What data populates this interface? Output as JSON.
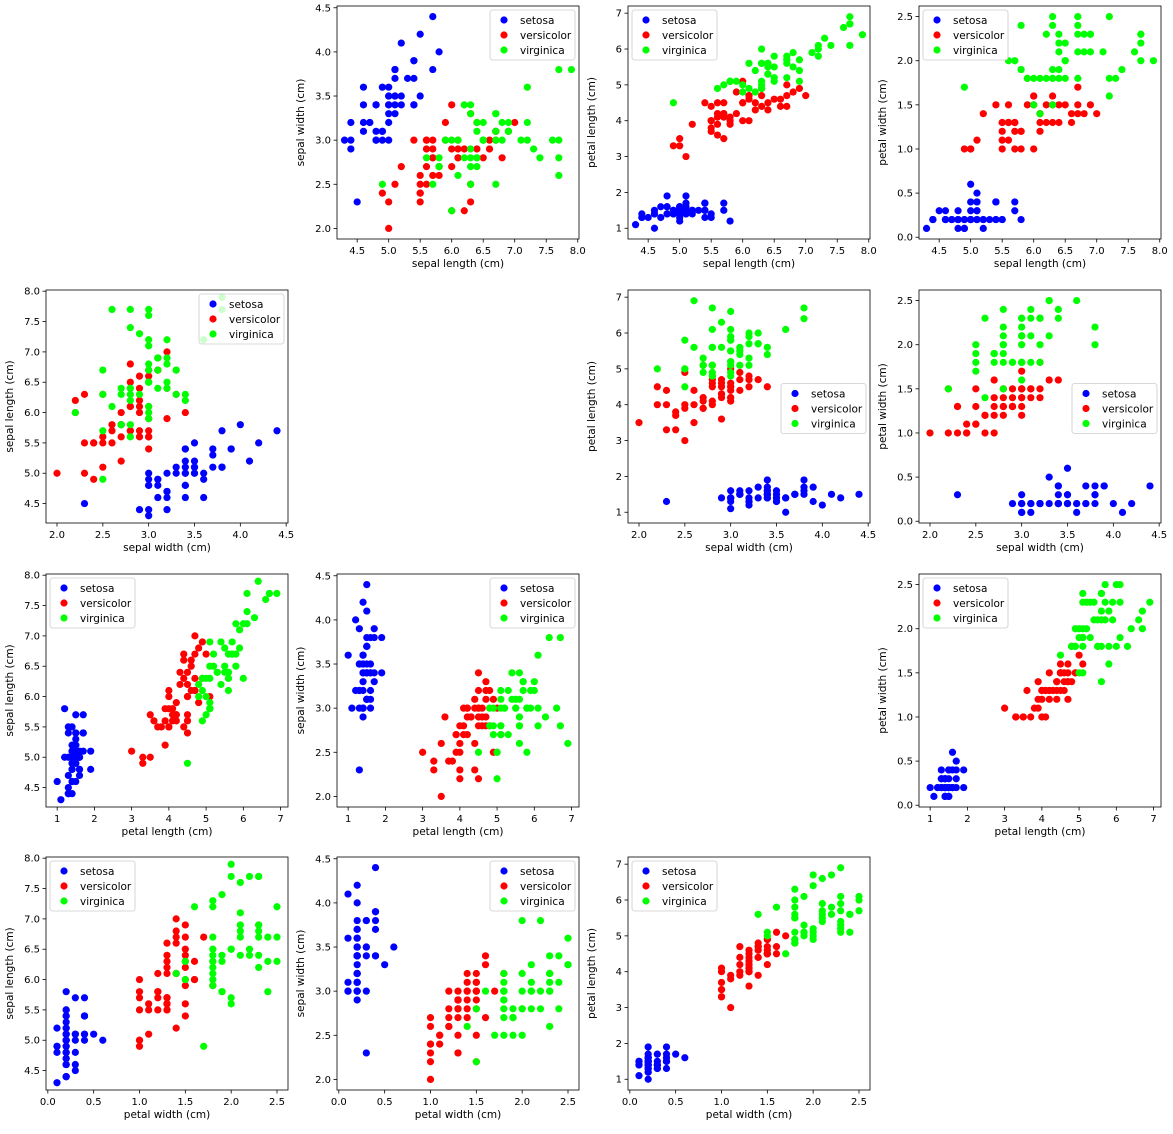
{
  "colors": {
    "setosa": "#0000ff",
    "versicolor": "#ff0000",
    "virginica": "#00ff00"
  },
  "legend": [
    "setosa",
    "versicolor",
    "virginica"
  ],
  "features": [
    "sepal length (cm)",
    "sepal width (cm)",
    "petal length (cm)",
    "petal width (cm)"
  ],
  "ticks": {
    "sepal length (cm)": [
      "4.5",
      "5.0",
      "5.5",
      "6.0",
      "6.5",
      "7.0",
      "7.5",
      "8.0"
    ],
    "sepal width (cm)": [
      "2.0",
      "2.5",
      "3.0",
      "3.5",
      "4.0",
      "4.5"
    ],
    "petal length (cm)": [
      "1",
      "2",
      "3",
      "4",
      "5",
      "6",
      "7"
    ],
    "petal width (cm)": [
      "0.0",
      "0.5",
      "1.0",
      "1.5",
      "2.0",
      "2.5"
    ]
  },
  "chart_data": {
    "type": "scatter",
    "grid": false,
    "layout": "4x4 pairwise scatter matrix, diagonal panels empty",
    "columns": [
      "sepal length (cm)",
      "sepal width (cm)",
      "petal length (cm)",
      "petal width (cm)"
    ],
    "series": [
      {
        "name": "setosa",
        "color": "#0000ff",
        "rows": [
          [
            5.1,
            3.5,
            1.4,
            0.2
          ],
          [
            4.9,
            3.0,
            1.4,
            0.2
          ],
          [
            4.7,
            3.2,
            1.3,
            0.2
          ],
          [
            4.6,
            3.1,
            1.5,
            0.2
          ],
          [
            5.0,
            3.6,
            1.4,
            0.2
          ],
          [
            5.4,
            3.9,
            1.7,
            0.4
          ],
          [
            4.6,
            3.4,
            1.4,
            0.3
          ],
          [
            5.0,
            3.4,
            1.5,
            0.2
          ],
          [
            4.4,
            2.9,
            1.4,
            0.2
          ],
          [
            4.9,
            3.1,
            1.5,
            0.1
          ],
          [
            5.4,
            3.7,
            1.5,
            0.2
          ],
          [
            4.8,
            3.4,
            1.6,
            0.2
          ],
          [
            4.8,
            3.0,
            1.4,
            0.1
          ],
          [
            4.3,
            3.0,
            1.1,
            0.1
          ],
          [
            5.8,
            4.0,
            1.2,
            0.2
          ],
          [
            5.7,
            4.4,
            1.5,
            0.4
          ],
          [
            5.4,
            3.9,
            1.3,
            0.4
          ],
          [
            5.1,
            3.5,
            1.4,
            0.3
          ],
          [
            5.7,
            3.8,
            1.7,
            0.3
          ],
          [
            5.1,
            3.8,
            1.5,
            0.3
          ],
          [
            5.4,
            3.4,
            1.7,
            0.2
          ],
          [
            5.1,
            3.7,
            1.5,
            0.4
          ],
          [
            4.6,
            3.6,
            1.0,
            0.2
          ],
          [
            5.1,
            3.3,
            1.7,
            0.5
          ],
          [
            4.8,
            3.4,
            1.9,
            0.2
          ],
          [
            5.0,
            3.0,
            1.6,
            0.2
          ],
          [
            5.0,
            3.4,
            1.6,
            0.4
          ],
          [
            5.2,
            3.5,
            1.5,
            0.2
          ],
          [
            5.2,
            3.4,
            1.4,
            0.2
          ],
          [
            4.7,
            3.2,
            1.6,
            0.2
          ],
          [
            4.8,
            3.1,
            1.6,
            0.2
          ],
          [
            5.4,
            3.4,
            1.5,
            0.4
          ],
          [
            5.2,
            4.1,
            1.5,
            0.1
          ],
          [
            5.5,
            4.2,
            1.4,
            0.2
          ],
          [
            4.9,
            3.1,
            1.5,
            0.2
          ],
          [
            5.0,
            3.2,
            1.2,
            0.2
          ],
          [
            5.5,
            3.5,
            1.3,
            0.2
          ],
          [
            4.9,
            3.6,
            1.4,
            0.1
          ],
          [
            4.4,
            3.0,
            1.3,
            0.2
          ],
          [
            5.1,
            3.4,
            1.5,
            0.2
          ],
          [
            5.0,
            3.5,
            1.3,
            0.3
          ],
          [
            4.5,
            2.3,
            1.3,
            0.3
          ],
          [
            4.4,
            3.2,
            1.3,
            0.2
          ],
          [
            5.0,
            3.5,
            1.6,
            0.6
          ],
          [
            5.1,
            3.8,
            1.9,
            0.4
          ],
          [
            4.8,
            3.0,
            1.4,
            0.3
          ],
          [
            5.1,
            3.8,
            1.6,
            0.2
          ],
          [
            4.6,
            3.2,
            1.4,
            0.2
          ],
          [
            5.3,
            3.7,
            1.5,
            0.2
          ],
          [
            5.0,
            3.3,
            1.4,
            0.2
          ]
        ]
      },
      {
        "name": "versicolor",
        "color": "#ff0000",
        "rows": [
          [
            7.0,
            3.2,
            4.7,
            1.4
          ],
          [
            6.4,
            3.2,
            4.5,
            1.5
          ],
          [
            6.9,
            3.1,
            4.9,
            1.5
          ],
          [
            5.5,
            2.3,
            4.0,
            1.3
          ],
          [
            6.5,
            2.8,
            4.6,
            1.5
          ],
          [
            5.7,
            2.8,
            4.5,
            1.3
          ],
          [
            6.3,
            3.3,
            4.7,
            1.6
          ],
          [
            4.9,
            2.4,
            3.3,
            1.0
          ],
          [
            6.6,
            2.9,
            4.6,
            1.3
          ],
          [
            5.2,
            2.7,
            3.9,
            1.4
          ],
          [
            5.0,
            2.0,
            3.5,
            1.0
          ],
          [
            5.9,
            3.0,
            4.2,
            1.5
          ],
          [
            6.0,
            2.2,
            4.0,
            1.0
          ],
          [
            6.1,
            2.9,
            4.7,
            1.4
          ],
          [
            5.6,
            2.9,
            3.6,
            1.3
          ],
          [
            6.7,
            3.1,
            4.4,
            1.4
          ],
          [
            5.6,
            3.0,
            4.5,
            1.5
          ],
          [
            5.8,
            2.7,
            4.1,
            1.0
          ],
          [
            6.2,
            2.2,
            4.5,
            1.5
          ],
          [
            5.6,
            2.5,
            3.9,
            1.1
          ],
          [
            5.9,
            3.2,
            4.8,
            1.8
          ],
          [
            6.1,
            2.8,
            4.0,
            1.3
          ],
          [
            6.3,
            2.5,
            4.9,
            1.5
          ],
          [
            6.1,
            2.8,
            4.7,
            1.2
          ],
          [
            6.4,
            2.9,
            4.3,
            1.3
          ],
          [
            6.6,
            3.0,
            4.4,
            1.4
          ],
          [
            6.8,
            2.8,
            4.8,
            1.4
          ],
          [
            6.7,
            3.0,
            5.0,
            1.7
          ],
          [
            6.0,
            2.9,
            4.5,
            1.5
          ],
          [
            5.7,
            2.6,
            3.5,
            1.0
          ],
          [
            5.5,
            2.4,
            3.8,
            1.1
          ],
          [
            5.5,
            2.4,
            3.7,
            1.0
          ],
          [
            5.8,
            2.7,
            3.9,
            1.2
          ],
          [
            6.0,
            2.7,
            5.1,
            1.6
          ],
          [
            5.4,
            3.0,
            4.5,
            1.5
          ],
          [
            6.0,
            3.4,
            4.5,
            1.6
          ],
          [
            6.7,
            3.1,
            4.7,
            1.5
          ],
          [
            6.3,
            2.3,
            4.4,
            1.3
          ],
          [
            5.6,
            3.0,
            4.1,
            1.3
          ],
          [
            5.5,
            2.5,
            4.0,
            1.3
          ],
          [
            5.5,
            2.6,
            4.4,
            1.2
          ],
          [
            6.1,
            3.0,
            4.6,
            1.4
          ],
          [
            5.8,
            2.6,
            4.0,
            1.2
          ],
          [
            5.0,
            2.3,
            3.3,
            1.0
          ],
          [
            5.6,
            2.7,
            4.2,
            1.3
          ],
          [
            5.7,
            3.0,
            4.2,
            1.2
          ],
          [
            5.7,
            2.9,
            4.2,
            1.3
          ],
          [
            6.2,
            2.9,
            4.3,
            1.3
          ],
          [
            5.1,
            2.5,
            3.0,
            1.1
          ],
          [
            5.7,
            2.8,
            4.1,
            1.3
          ]
        ]
      },
      {
        "name": "virginica",
        "color": "#00ff00",
        "rows": [
          [
            6.3,
            3.3,
            6.0,
            2.5
          ],
          [
            5.8,
            2.7,
            5.1,
            1.9
          ],
          [
            7.1,
            3.0,
            5.9,
            2.1
          ],
          [
            6.3,
            2.9,
            5.6,
            1.8
          ],
          [
            6.5,
            3.0,
            5.8,
            2.2
          ],
          [
            7.6,
            3.0,
            6.6,
            2.1
          ],
          [
            4.9,
            2.5,
            4.5,
            1.7
          ],
          [
            7.3,
            2.9,
            6.3,
            1.8
          ],
          [
            6.7,
            2.5,
            5.8,
            1.8
          ],
          [
            7.2,
            3.6,
            6.1,
            2.5
          ],
          [
            6.5,
            3.2,
            5.1,
            2.0
          ],
          [
            6.4,
            2.7,
            5.3,
            1.9
          ],
          [
            6.8,
            3.0,
            5.5,
            2.1
          ],
          [
            5.7,
            2.5,
            5.0,
            2.0
          ],
          [
            5.8,
            2.8,
            5.1,
            2.4
          ],
          [
            6.4,
            3.2,
            5.3,
            2.3
          ],
          [
            6.5,
            3.0,
            5.5,
            1.8
          ],
          [
            7.7,
            3.8,
            6.7,
            2.2
          ],
          [
            7.7,
            2.6,
            6.9,
            2.3
          ],
          [
            6.0,
            2.2,
            5.0,
            1.5
          ],
          [
            6.9,
            3.2,
            5.7,
            2.3
          ],
          [
            5.6,
            2.8,
            4.9,
            2.0
          ],
          [
            7.7,
            2.8,
            6.7,
            2.0
          ],
          [
            6.3,
            2.7,
            4.9,
            1.8
          ],
          [
            6.7,
            3.3,
            5.7,
            2.1
          ],
          [
            7.2,
            3.2,
            6.0,
            1.8
          ],
          [
            6.2,
            2.8,
            4.8,
            1.8
          ],
          [
            6.1,
            3.0,
            4.9,
            1.8
          ],
          [
            6.4,
            2.8,
            5.6,
            2.1
          ],
          [
            7.2,
            3.0,
            5.8,
            1.6
          ],
          [
            7.4,
            2.8,
            6.1,
            1.9
          ],
          [
            7.9,
            3.8,
            6.4,
            2.0
          ],
          [
            6.4,
            2.8,
            5.6,
            2.2
          ],
          [
            6.3,
            2.8,
            5.1,
            1.5
          ],
          [
            6.1,
            2.6,
            5.6,
            1.4
          ],
          [
            7.7,
            3.0,
            6.1,
            2.3
          ],
          [
            6.3,
            3.4,
            5.6,
            2.4
          ],
          [
            6.4,
            3.1,
            5.5,
            1.8
          ],
          [
            6.0,
            3.0,
            4.8,
            1.8
          ],
          [
            6.9,
            3.1,
            5.4,
            2.1
          ],
          [
            6.7,
            3.1,
            5.6,
            2.4
          ],
          [
            6.9,
            3.1,
            5.1,
            2.3
          ],
          [
            5.8,
            2.7,
            5.1,
            1.9
          ],
          [
            6.8,
            3.2,
            5.9,
            2.3
          ],
          [
            6.7,
            3.3,
            5.7,
            2.5
          ],
          [
            6.7,
            3.0,
            5.2,
            2.3
          ],
          [
            6.3,
            2.5,
            5.0,
            1.9
          ],
          [
            6.5,
            3.0,
            5.2,
            2.0
          ],
          [
            6.2,
            3.4,
            5.4,
            2.3
          ],
          [
            5.9,
            3.0,
            5.1,
            1.8
          ]
        ]
      }
    ],
    "panels": [
      {
        "row": 0,
        "col": 1,
        "x": "sepal length (cm)",
        "y": "sepal width (cm)",
        "xlim": [
          4.18,
          8.02
        ],
        "ylim": [
          1.88,
          4.52
        ],
        "legend": "top-right"
      },
      {
        "row": 0,
        "col": 2,
        "x": "sepal length (cm)",
        "y": "petal length (cm)",
        "xlim": [
          4.18,
          8.02
        ],
        "ylim": [
          0.7,
          7.2
        ],
        "legend": "top-left"
      },
      {
        "row": 0,
        "col": 3,
        "x": "sepal length (cm)",
        "y": "petal width (cm)",
        "xlim": [
          4.18,
          8.02
        ],
        "ylim": [
          -0.02,
          2.62
        ],
        "legend": "top-left"
      },
      {
        "row": 1,
        "col": 0,
        "x": "sepal width (cm)",
        "y": "sepal length (cm)",
        "xlim": [
          1.88,
          4.52
        ],
        "ylim": [
          4.18,
          8.02
        ],
        "legend": "top-right"
      },
      {
        "row": 1,
        "col": 2,
        "x": "sepal width (cm)",
        "y": "petal length (cm)",
        "xlim": [
          1.88,
          4.52
        ],
        "ylim": [
          0.7,
          7.2
        ],
        "legend": "center-right"
      },
      {
        "row": 1,
        "col": 3,
        "x": "sepal width (cm)",
        "y": "petal width (cm)",
        "xlim": [
          1.88,
          4.52
        ],
        "ylim": [
          -0.02,
          2.62
        ],
        "legend": "center-right"
      },
      {
        "row": 2,
        "col": 0,
        "x": "petal length (cm)",
        "y": "sepal length (cm)",
        "xlim": [
          0.7,
          7.2
        ],
        "ylim": [
          4.18,
          8.02
        ],
        "legend": "top-left"
      },
      {
        "row": 2,
        "col": 1,
        "x": "petal length (cm)",
        "y": "sepal width (cm)",
        "xlim": [
          0.7,
          7.2
        ],
        "ylim": [
          1.88,
          4.52
        ],
        "legend": "top-right"
      },
      {
        "row": 2,
        "col": 3,
        "x": "petal length (cm)",
        "y": "petal width (cm)",
        "xlim": [
          0.7,
          7.2
        ],
        "ylim": [
          -0.02,
          2.62
        ],
        "legend": "top-left"
      },
      {
        "row": 3,
        "col": 0,
        "x": "petal width (cm)",
        "y": "sepal length (cm)",
        "xlim": [
          -0.02,
          2.62
        ],
        "ylim": [
          4.18,
          8.02
        ],
        "legend": "top-left"
      },
      {
        "row": 3,
        "col": 1,
        "x": "petal width (cm)",
        "y": "sepal width (cm)",
        "xlim": [
          -0.02,
          2.62
        ],
        "ylim": [
          1.88,
          4.52
        ],
        "legend": "top-right"
      },
      {
        "row": 3,
        "col": 2,
        "x": "petal width (cm)",
        "y": "petal length (cm)",
        "xlim": [
          -0.02,
          2.62
        ],
        "ylim": [
          0.7,
          7.2
        ],
        "legend": "top-left"
      }
    ]
  }
}
